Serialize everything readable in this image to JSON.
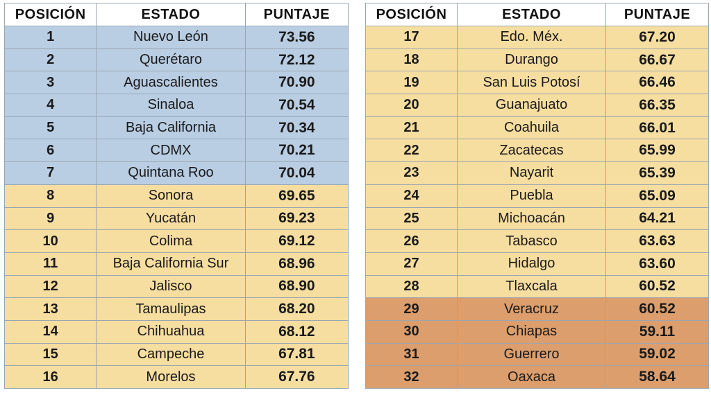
{
  "colors": {
    "top_tier": "#b9cde3",
    "middle_tier": "#f6dda0",
    "bottom_tier": "#dc9e6c",
    "border": "#9aa7b2"
  },
  "headers": {
    "position": "POSICIÓN",
    "state": "ESTADO",
    "score": "PUNTAJE"
  },
  "tables": [
    {
      "rows": [
        {
          "pos": "1",
          "state": "Nuevo León",
          "score": "73.56",
          "tier": "blue"
        },
        {
          "pos": "2",
          "state": "Querétaro",
          "score": "72.12",
          "tier": "blue"
        },
        {
          "pos": "3",
          "state": "Aguascalientes",
          "score": "70.90",
          "tier": "blue"
        },
        {
          "pos": "4",
          "state": "Sinaloa",
          "score": "70.54",
          "tier": "blue"
        },
        {
          "pos": "5",
          "state": "Baja California",
          "score": "70.34",
          "tier": "blue"
        },
        {
          "pos": "6",
          "state": "CDMX",
          "score": "70.21",
          "tier": "blue"
        },
        {
          "pos": "7",
          "state": "Quintana Roo",
          "score": "70.04",
          "tier": "blue"
        },
        {
          "pos": "8",
          "state": "Sonora",
          "score": "69.65",
          "tier": "yellow"
        },
        {
          "pos": "9",
          "state": "Yucatán",
          "score": "69.23",
          "tier": "yellow"
        },
        {
          "pos": "10",
          "state": "Colima",
          "score": "69.12",
          "tier": "yellow"
        },
        {
          "pos": "11",
          "state": "Baja California Sur",
          "score": "68.96",
          "tier": "yellow"
        },
        {
          "pos": "12",
          "state": "Jalisco",
          "score": "68.90",
          "tier": "yellow"
        },
        {
          "pos": "13",
          "state": "Tamaulipas",
          "score": "68.20",
          "tier": "yellow"
        },
        {
          "pos": "14",
          "state": "Chihuahua",
          "score": "68.12",
          "tier": "yellow"
        },
        {
          "pos": "15",
          "state": "Campeche",
          "score": "67.81",
          "tier": "yellow"
        },
        {
          "pos": "16",
          "state": "Morelos",
          "score": "67.76",
          "tier": "yellow"
        }
      ]
    },
    {
      "rows": [
        {
          "pos": "17",
          "state": "Edo. Méx.",
          "score": "67.20",
          "tier": "yellow"
        },
        {
          "pos": "18",
          "state": "Durango",
          "score": "66.67",
          "tier": "yellow"
        },
        {
          "pos": "19",
          "state": "San Luis Potosí",
          "score": "66.46",
          "tier": "yellow"
        },
        {
          "pos": "20",
          "state": "Guanajuato",
          "score": "66.35",
          "tier": "yellow"
        },
        {
          "pos": "21",
          "state": "Coahuila",
          "score": "66.01",
          "tier": "yellow"
        },
        {
          "pos": "22",
          "state": "Zacatecas",
          "score": "65.99",
          "tier": "yellow"
        },
        {
          "pos": "23",
          "state": "Nayarit",
          "score": "65.39",
          "tier": "yellow"
        },
        {
          "pos": "24",
          "state": "Puebla",
          "score": "65.09",
          "tier": "yellow"
        },
        {
          "pos": "25",
          "state": "Michoacán",
          "score": "64.21",
          "tier": "yellow"
        },
        {
          "pos": "26",
          "state": "Tabasco",
          "score": "63.63",
          "tier": "yellow"
        },
        {
          "pos": "27",
          "state": "Hidalgo",
          "score": "63.60",
          "tier": "yellow"
        },
        {
          "pos": "28",
          "state": "Tlaxcala",
          "score": "60.52",
          "tier": "yellow"
        },
        {
          "pos": "29",
          "state": "Veracruz",
          "score": "60.52",
          "tier": "orange"
        },
        {
          "pos": "30",
          "state": "Chiapas",
          "score": "59.11",
          "tier": "orange"
        },
        {
          "pos": "31",
          "state": "Guerrero",
          "score": "59.02",
          "tier": "orange"
        },
        {
          "pos": "32",
          "state": "Oaxaca",
          "score": "58.64",
          "tier": "orange"
        }
      ]
    }
  ]
}
